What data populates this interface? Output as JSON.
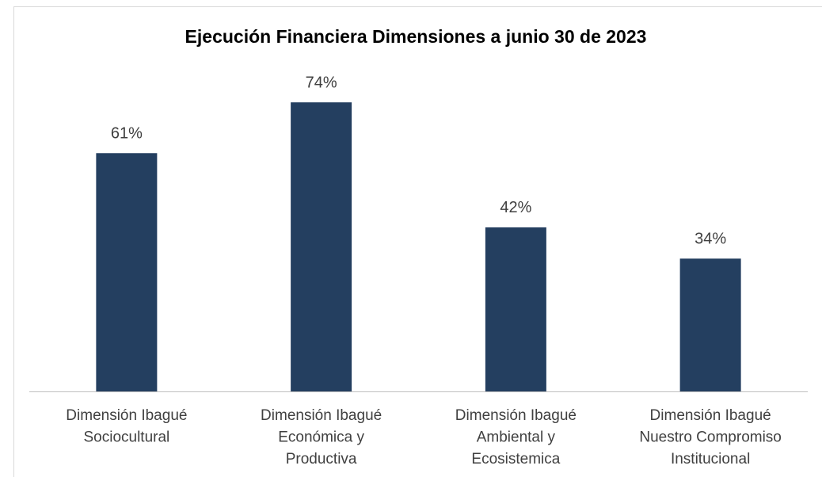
{
  "chart_data": {
    "type": "bar",
    "title": "Ejecución Financiera Dimensiones a junio 30 de 2023",
    "categories": [
      [
        "Dimensión Ibagué",
        "Sociocultural"
      ],
      [
        "Dimensión Ibagué",
        "Económica y",
        "Productiva"
      ],
      [
        "Dimensión Ibagué",
        "Ambiental y",
        "Ecosistemica"
      ],
      [
        "Dimensión Ibagué",
        "Nuestro Compromiso",
        "Institucional"
      ]
    ],
    "values": [
      61,
      74,
      42,
      34
    ],
    "value_labels": [
      "61%",
      "74%",
      "42%",
      "34%"
    ],
    "color": "#243f60"
  }
}
